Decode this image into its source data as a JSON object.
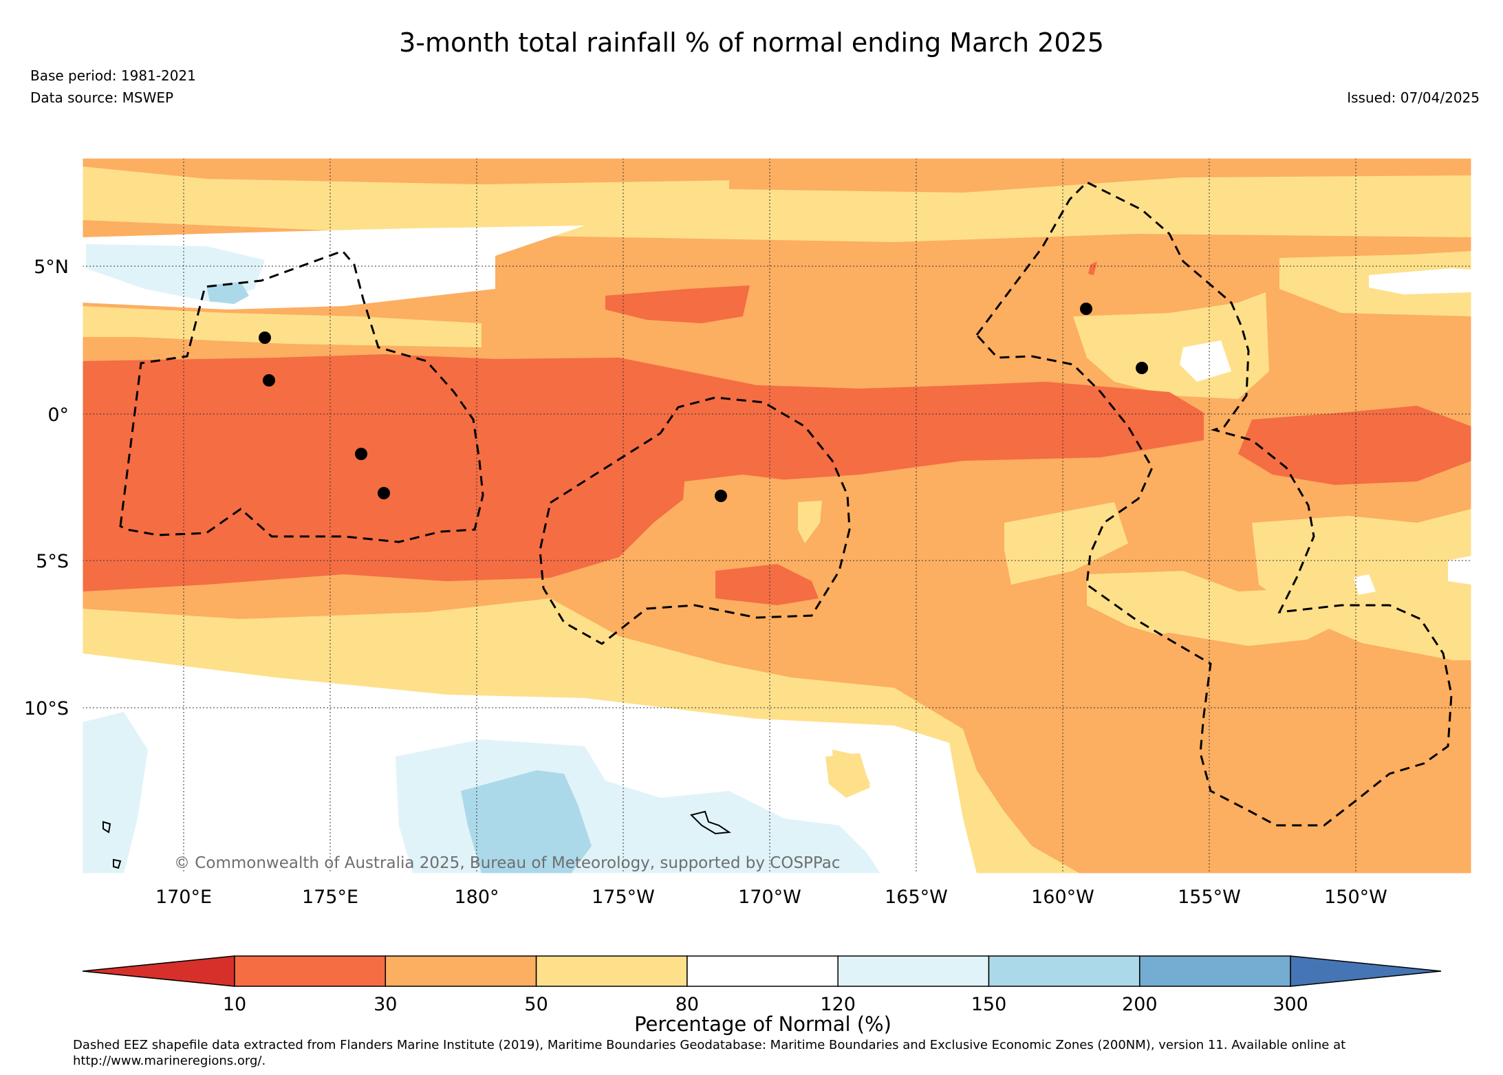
{
  "title": "3-month total rainfall % of normal ending March 2025",
  "base_period": "Base period: 1981-2021",
  "data_source": "Data source: MSWEP",
  "issued": "Issued: 07/04/2025",
  "copyright": "© Commonwealth of Australia 2025, Bureau of Meteorology, supported by COSPPac",
  "map": {
    "lat_labels": [
      "5°N",
      "0°",
      "5°S",
      "10°S"
    ],
    "lon_labels": [
      "170°E",
      "175°E",
      "180°",
      "175°W",
      "170°W",
      "165°W",
      "160°W",
      "155°W",
      "150°W"
    ]
  },
  "colorbar": {
    "label": "Percentage of Normal (%)",
    "ticks": [
      "10",
      "30",
      "50",
      "80",
      "120",
      "150",
      "200",
      "300"
    ],
    "colors": [
      "#d7302a",
      "#f46d43",
      "#fcae61",
      "#fee08b",
      "#ffffff",
      "#e0f3f8",
      "#abd9e9",
      "#74add1",
      "#4575b4"
    ]
  },
  "footnote": "Dashed EEZ shapefile data extracted from Flanders Marine Institute (2019), Maritime Boundaries Geodatabase: Maritime Boundaries and Exclusive Economic Zones (200NM), version 11. Available online at http://www.marineregions.org/."
}
